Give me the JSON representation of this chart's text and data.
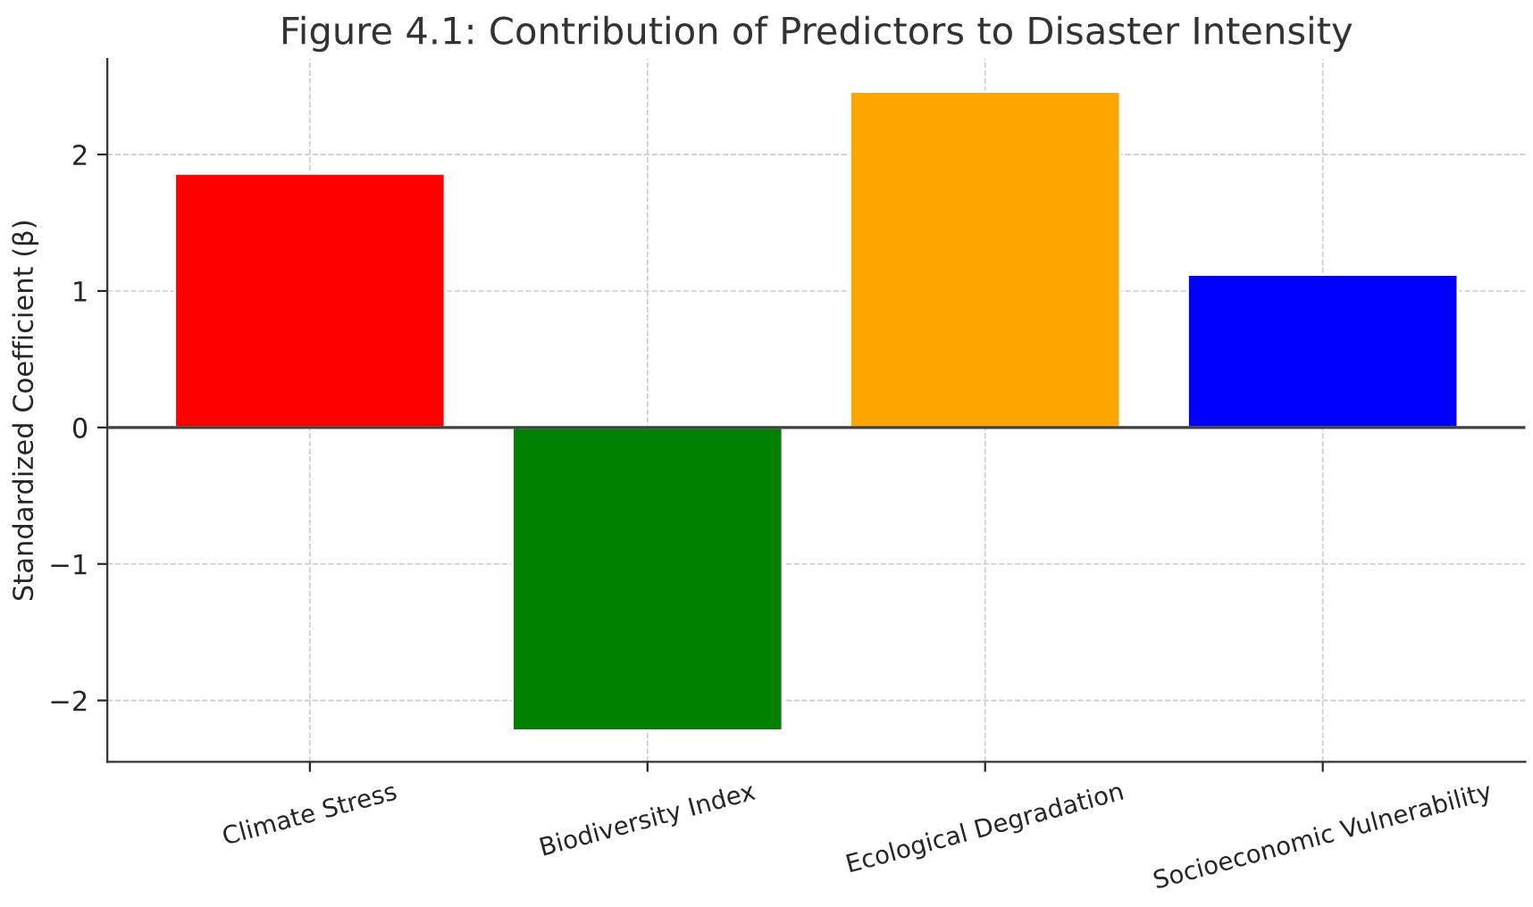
{
  "chart_data": {
    "type": "bar",
    "title": "Figure 4.1: Contribution of Predictors to Disaster Intensity",
    "ylabel": "Standardized Coefficient (β)",
    "categories": [
      "Climate Stress",
      "Biodiversity Index",
      "Ecological Degradation",
      "Socioeconomic Vulnerability"
    ],
    "values": [
      1.86,
      -2.22,
      2.46,
      1.12
    ],
    "colors": [
      "#ff0000",
      "#008000",
      "#ffa500",
      "#0000ff"
    ],
    "ylim": [
      -2.45,
      2.7
    ],
    "yticks": [
      {
        "value": -2,
        "label": "−2"
      },
      {
        "value": -1,
        "label": "−1"
      },
      0,
      1,
      2
    ],
    "ref_lines": [
      {
        "axis": "y",
        "value": 0,
        "color": "#404040",
        "line_style": "solid"
      }
    ],
    "grid": true
  }
}
